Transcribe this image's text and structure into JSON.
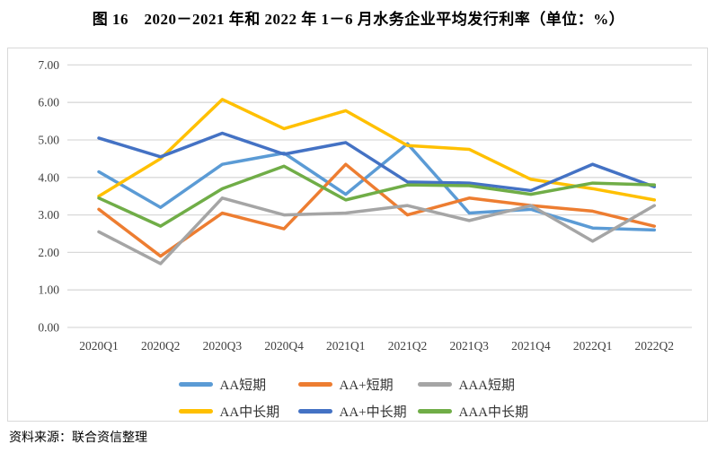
{
  "title": "图 16　2020－2021 年和 2022 年 1－6 月水务企业平均发行利率（单位：%）",
  "footer": "资料来源：联合资信整理",
  "colors": {
    "gridline": "#d9d9d9",
    "frame_border": "#d9d9d9",
    "axis_text": "#404040",
    "legend_text": "#333333"
  },
  "chart_data": {
    "type": "line",
    "title": "图 16　2020－2021 年和 2022 年 1－6 月水务企业平均发行利率（单位：%）",
    "xlabel": "",
    "ylabel": "",
    "ylim": [
      0,
      7
    ],
    "ytick_step": 1,
    "ytick_decimals": 2,
    "ytick_labels": [
      "0.00",
      "1.00",
      "2.00",
      "3.00",
      "4.00",
      "5.00",
      "6.00",
      "7.00"
    ],
    "grid": true,
    "legend_position": "bottom",
    "categories": [
      "2020Q1",
      "2020Q2",
      "2020Q3",
      "2020Q4",
      "2021Q1",
      "2021Q2",
      "2021Q3",
      "2021Q4",
      "2022Q1",
      "2022Q2"
    ],
    "series": [
      {
        "name": "AA短期",
        "slug": "aa-short-term",
        "color": "#5b9bd5",
        "values": [
          4.15,
          3.2,
          4.35,
          4.65,
          3.55,
          4.9,
          3.05,
          3.15,
          2.65,
          2.6
        ]
      },
      {
        "name": "AA+短期",
        "slug": "aa-plus-short-term",
        "color": "#ed7d31",
        "values": [
          3.15,
          1.9,
          3.05,
          2.63,
          4.35,
          3.0,
          3.45,
          3.25,
          3.1,
          2.7
        ]
      },
      {
        "name": "AAA短期",
        "slug": "aaa-short-term",
        "color": "#a5a5a5",
        "values": [
          2.55,
          1.7,
          3.45,
          3.0,
          3.05,
          3.25,
          2.85,
          3.25,
          2.3,
          3.25
        ]
      },
      {
        "name": "AA中长期",
        "slug": "aa-mid-long-term",
        "color": "#ffc000",
        "values": [
          3.5,
          4.5,
          6.08,
          5.3,
          5.78,
          4.85,
          4.75,
          3.95,
          3.7,
          3.4
        ]
      },
      {
        "name": "AA+中长期",
        "slug": "aa-plus-mid-long-term",
        "color": "#4472c4",
        "values": [
          5.05,
          4.55,
          5.18,
          4.62,
          4.93,
          3.88,
          3.85,
          3.65,
          4.35,
          3.75
        ]
      },
      {
        "name": "AAA中长期",
        "slug": "aaa-mid-long-term",
        "color": "#70ad47",
        "values": [
          3.45,
          2.7,
          3.7,
          4.3,
          3.4,
          3.8,
          3.78,
          3.55,
          3.85,
          3.8
        ]
      }
    ],
    "legend_rows": [
      [
        "AA短期",
        "AA+短期",
        "AAA短期"
      ],
      [
        "AA中长期",
        "AA+中长期",
        "AAA中长期"
      ]
    ]
  }
}
